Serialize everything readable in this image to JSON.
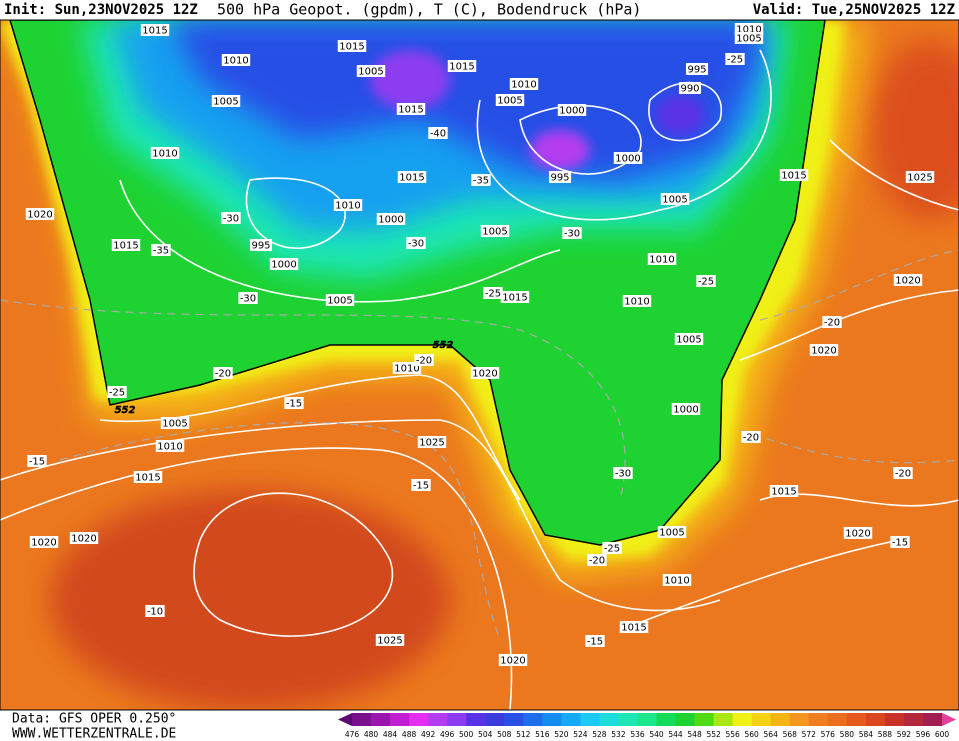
{
  "header": {
    "init": "Init: Sun,23NOV2025 12Z",
    "title": "500 hPa Geopot. (gpdm), T (C), Bodendruck (hPa)",
    "valid": "Valid: Tue,25NOV2025 12Z"
  },
  "footer": {
    "data_source": "Data: GFS OPER 0.250°",
    "website": "WWW.WETTERZENTRALE.DE"
  },
  "map": {
    "isobar_labels": [
      1015,
      1010,
      1005,
      1010,
      1020,
      1015,
      995,
      1000,
      1005,
      1015,
      1005,
      1015,
      1015,
      1015,
      1010,
      1000,
      1010,
      1005,
      1000,
      995,
      1000,
      1005,
      995,
      990,
      1010,
      1005,
      1015,
      1025,
      1005,
      1010,
      1010,
      1015,
      1005,
      1000,
      1020,
      1020,
      1010,
      1020,
      1005,
      1010,
      1015,
      1025,
      1020,
      1020,
      1015,
      1005,
      1020,
      1010,
      1015,
      1025,
      1020
    ],
    "temperature_labels": [
      -25,
      -40,
      -35,
      -30,
      -35,
      -30,
      -30,
      -30,
      -25,
      -25,
      -20,
      -20,
      -25,
      -15,
      -15,
      -15,
      -20,
      -20,
      -20,
      -30,
      -25,
      -20,
      -15,
      -15,
      -10
    ],
    "height_labels": [
      552,
      552
    ]
  },
  "colorbar": {
    "labels": [
      476,
      480,
      484,
      488,
      492,
      496,
      500,
      504,
      508,
      512,
      516,
      520,
      524,
      528,
      532,
      536,
      540,
      544,
      548,
      552,
      556,
      560,
      564,
      568,
      572,
      576,
      580,
      584,
      588,
      592,
      596,
      600
    ],
    "colors": [
      "#5a0a6e",
      "#7a0f8e",
      "#9a14ae",
      "#c01ed0",
      "#e22ef0",
      "#b43cf0",
      "#8c3cf0",
      "#5a32e6",
      "#3c3cdc",
      "#2850e6",
      "#1e6eeb",
      "#148cf0",
      "#14aaf5",
      "#1ec8f5",
      "#1edcdc",
      "#1ee6b4",
      "#1ee68c",
      "#14dc5a",
      "#1ed232",
      "#50dc14",
      "#aae614",
      "#f0f014",
      "#f5d214",
      "#f5b414",
      "#f5961e",
      "#f07d1e",
      "#eb6e1e",
      "#e65a1e",
      "#dc461e",
      "#c83228",
      "#b4283c",
      "#a01e50",
      "#e63c9c"
    ]
  }
}
